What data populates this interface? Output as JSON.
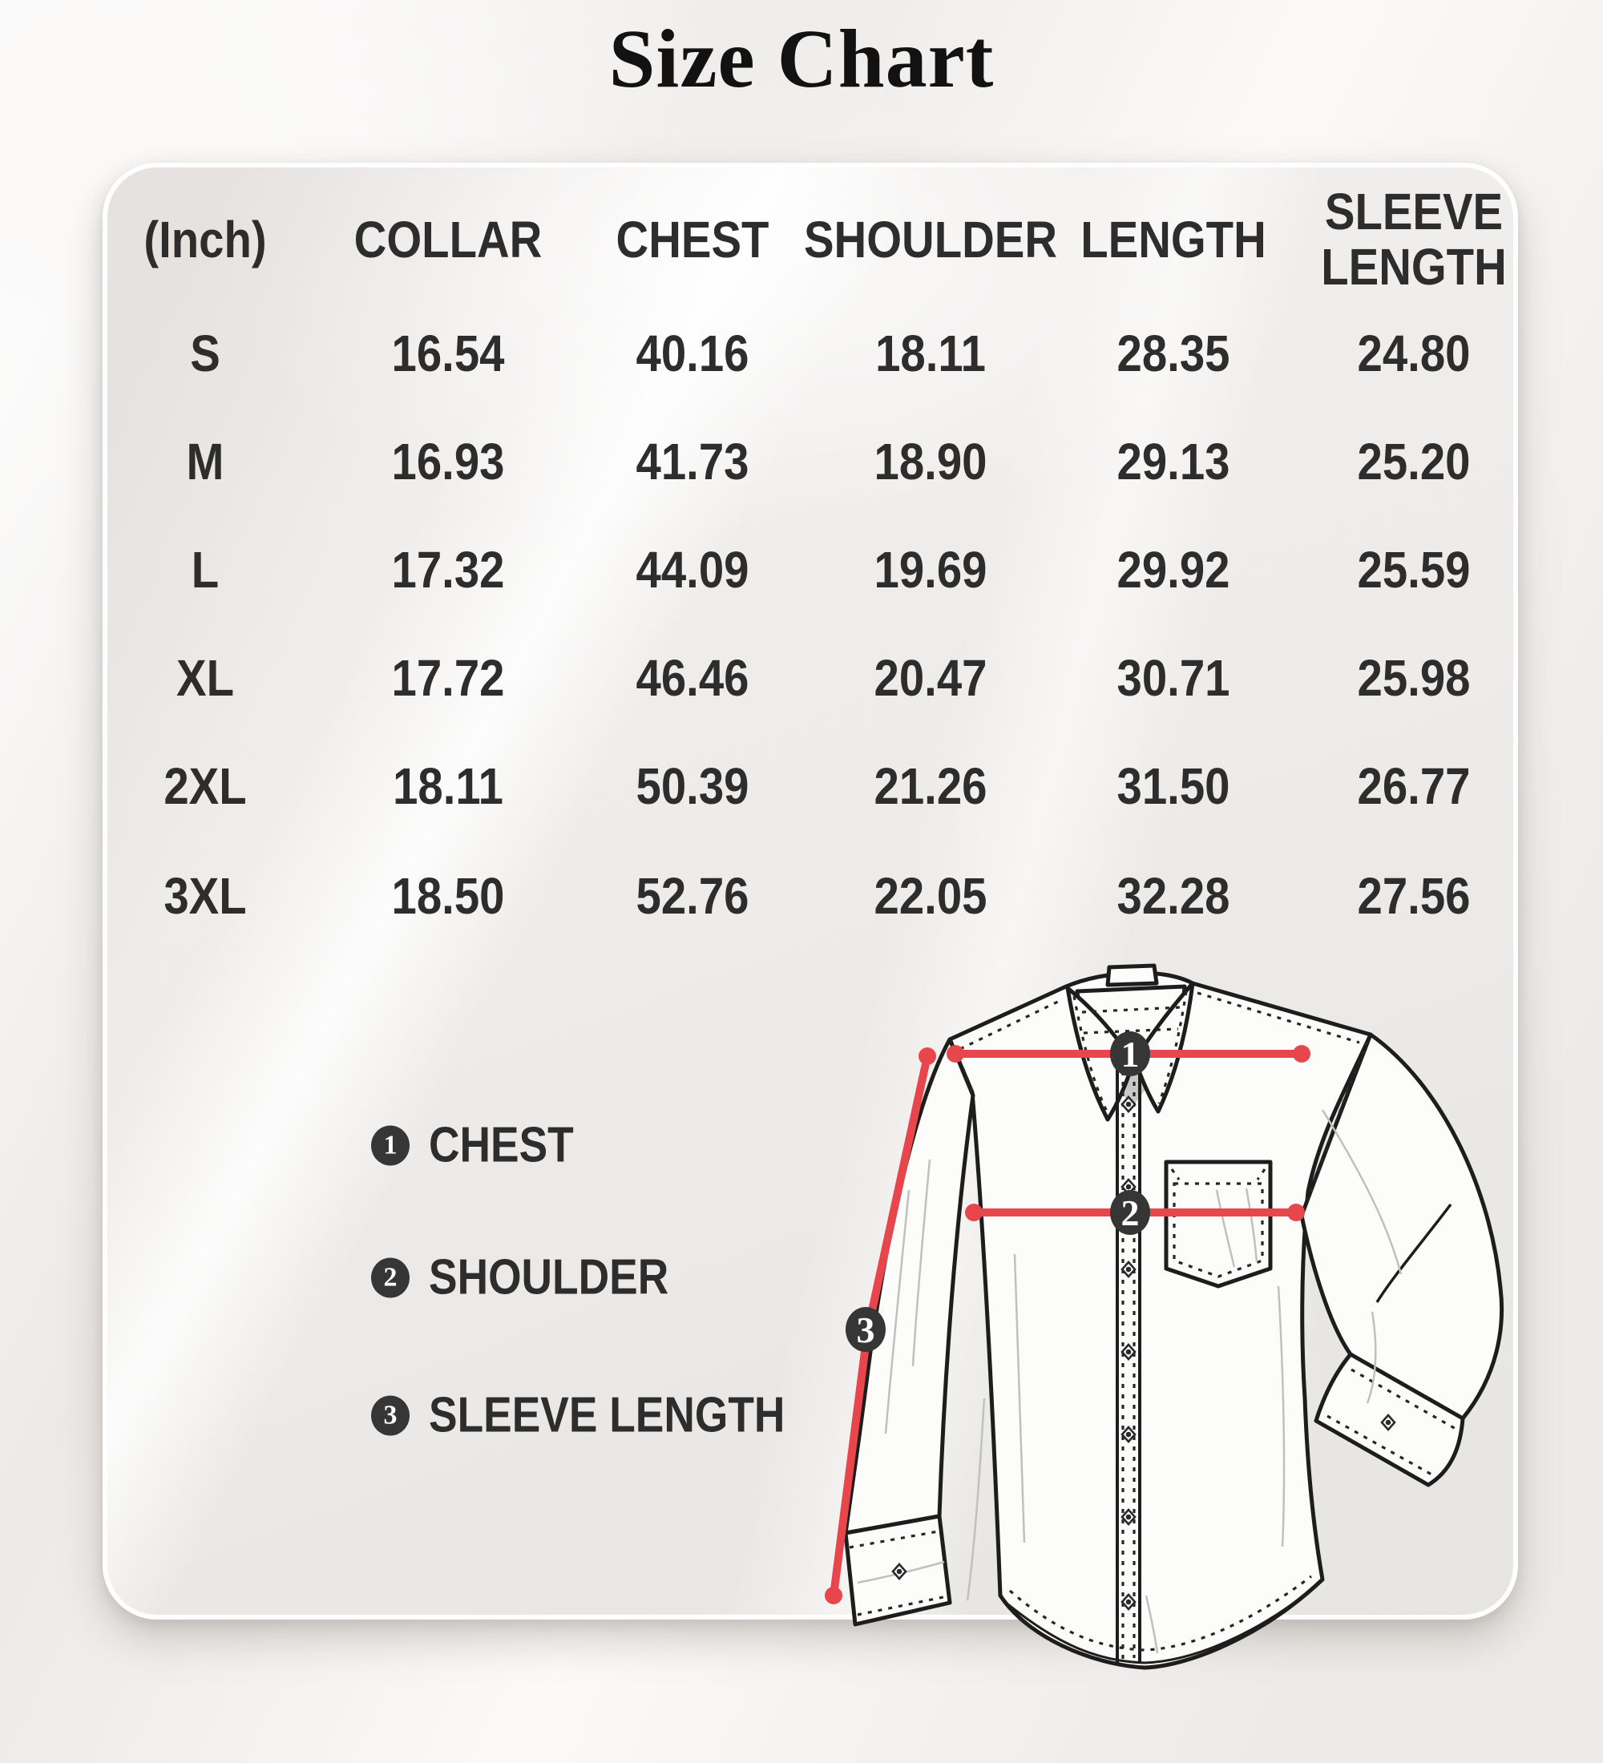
{
  "title": "Size Chart",
  "colors": {
    "accent_red": "#e8464d",
    "marker_dark": "#363636",
    "text_dark": "#2d2d2d",
    "card_bg": "#efedec",
    "page_bg": "#f0eeec"
  },
  "chart_data": {
    "type": "table",
    "title": "Size Chart",
    "unit": "inches",
    "columns": [
      "(Inch)",
      "COLLAR",
      "CHEST",
      "SHOULDER",
      "LENGTH",
      "SLEEVE LENGTH"
    ],
    "rows": [
      {
        "size": "S",
        "collar": "16.54",
        "chest": "40.16",
        "shoulder": "18.11",
        "length": "28.35",
        "sleeve_length": "24.80"
      },
      {
        "size": "M",
        "collar": "16.93",
        "chest": "41.73",
        "shoulder": "18.90",
        "length": "29.13",
        "sleeve_length": "25.20"
      },
      {
        "size": "L",
        "collar": "17.32",
        "chest": "44.09",
        "shoulder": "19.69",
        "length": "29.92",
        "sleeve_length": "25.59"
      },
      {
        "size": "XL",
        "collar": "17.72",
        "chest": "46.46",
        "shoulder": "20.47",
        "length": "30.71",
        "sleeve_length": "25.98"
      },
      {
        "size": "2XL",
        "collar": "18.11",
        "chest": "50.39",
        "shoulder": "21.26",
        "length": "31.50",
        "sleeve_length": "26.77"
      },
      {
        "size": "3XL",
        "collar": "18.50",
        "chest": "52.76",
        "shoulder": "22.05",
        "length": "32.28",
        "sleeve_length": "27.56"
      }
    ]
  },
  "measure_points": [
    {
      "num": "1",
      "label": "CHEST"
    },
    {
      "num": "2",
      "label": "SHOULDER"
    },
    {
      "num": "3",
      "label": "SLEEVE LENGTH"
    }
  ]
}
